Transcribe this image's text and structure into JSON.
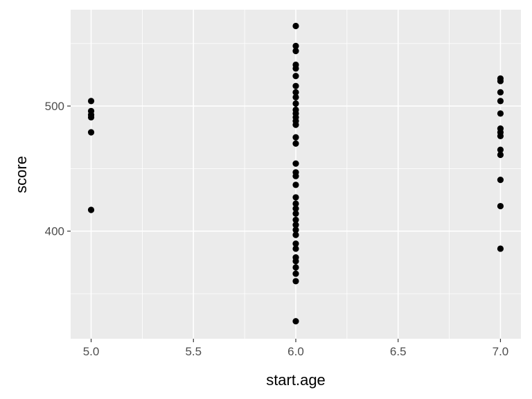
{
  "chart_data": {
    "type": "scatter",
    "xlabel": "start.age",
    "ylabel": "score",
    "xlim": [
      4.9,
      7.1
    ],
    "ylim": [
      314,
      577
    ],
    "x_ticks": [
      5.0,
      5.5,
      6.0,
      6.5,
      7.0
    ],
    "x_tick_labels": [
      "5.0",
      "5.5",
      "6.0",
      "6.5",
      "7.0"
    ],
    "y_ticks": [
      400,
      500
    ],
    "y_tick_labels": [
      "400",
      "500"
    ],
    "y_minor_gridlines": [
      350,
      450,
      550
    ],
    "x_minor_gridlines": [
      5.25,
      5.75,
      6.25,
      6.75
    ],
    "grid": true,
    "panel_background": "#ebebeb",
    "grid_color": "#ffffff",
    "point_color": "#000000",
    "points": [
      {
        "x": 5,
        "y": 504
      },
      {
        "x": 5,
        "y": 496
      },
      {
        "x": 5,
        "y": 493
      },
      {
        "x": 5,
        "y": 491
      },
      {
        "x": 5,
        "y": 479
      },
      {
        "x": 5,
        "y": 417
      },
      {
        "x": 6,
        "y": 564
      },
      {
        "x": 6,
        "y": 548
      },
      {
        "x": 6,
        "y": 544
      },
      {
        "x": 6,
        "y": 533
      },
      {
        "x": 6,
        "y": 530
      },
      {
        "x": 6,
        "y": 524
      },
      {
        "x": 6,
        "y": 516
      },
      {
        "x": 6,
        "y": 511
      },
      {
        "x": 6,
        "y": 507
      },
      {
        "x": 6,
        "y": 502
      },
      {
        "x": 6,
        "y": 497
      },
      {
        "x": 6,
        "y": 494
      },
      {
        "x": 6,
        "y": 491
      },
      {
        "x": 6,
        "y": 488
      },
      {
        "x": 6,
        "y": 485
      },
      {
        "x": 6,
        "y": 475
      },
      {
        "x": 6,
        "y": 470
      },
      {
        "x": 6,
        "y": 454
      },
      {
        "x": 6,
        "y": 447
      },
      {
        "x": 6,
        "y": 444
      },
      {
        "x": 6,
        "y": 437
      },
      {
        "x": 6,
        "y": 427
      },
      {
        "x": 6,
        "y": 422
      },
      {
        "x": 6,
        "y": 418
      },
      {
        "x": 6,
        "y": 414
      },
      {
        "x": 6,
        "y": 409
      },
      {
        "x": 6,
        "y": 405
      },
      {
        "x": 6,
        "y": 401
      },
      {
        "x": 6,
        "y": 397
      },
      {
        "x": 6,
        "y": 390
      },
      {
        "x": 6,
        "y": 386
      },
      {
        "x": 6,
        "y": 379
      },
      {
        "x": 6,
        "y": 376
      },
      {
        "x": 6,
        "y": 371
      },
      {
        "x": 6,
        "y": 366
      },
      {
        "x": 6,
        "y": 360
      },
      {
        "x": 6,
        "y": 328
      },
      {
        "x": 7,
        "y": 522
      },
      {
        "x": 7,
        "y": 520
      },
      {
        "x": 7,
        "y": 511
      },
      {
        "x": 7,
        "y": 504
      },
      {
        "x": 7,
        "y": 494
      },
      {
        "x": 7,
        "y": 482
      },
      {
        "x": 7,
        "y": 479
      },
      {
        "x": 7,
        "y": 476
      },
      {
        "x": 7,
        "y": 465
      },
      {
        "x": 7,
        "y": 461
      },
      {
        "x": 7,
        "y": 441
      },
      {
        "x": 7,
        "y": 420
      },
      {
        "x": 7,
        "y": 386
      }
    ]
  }
}
